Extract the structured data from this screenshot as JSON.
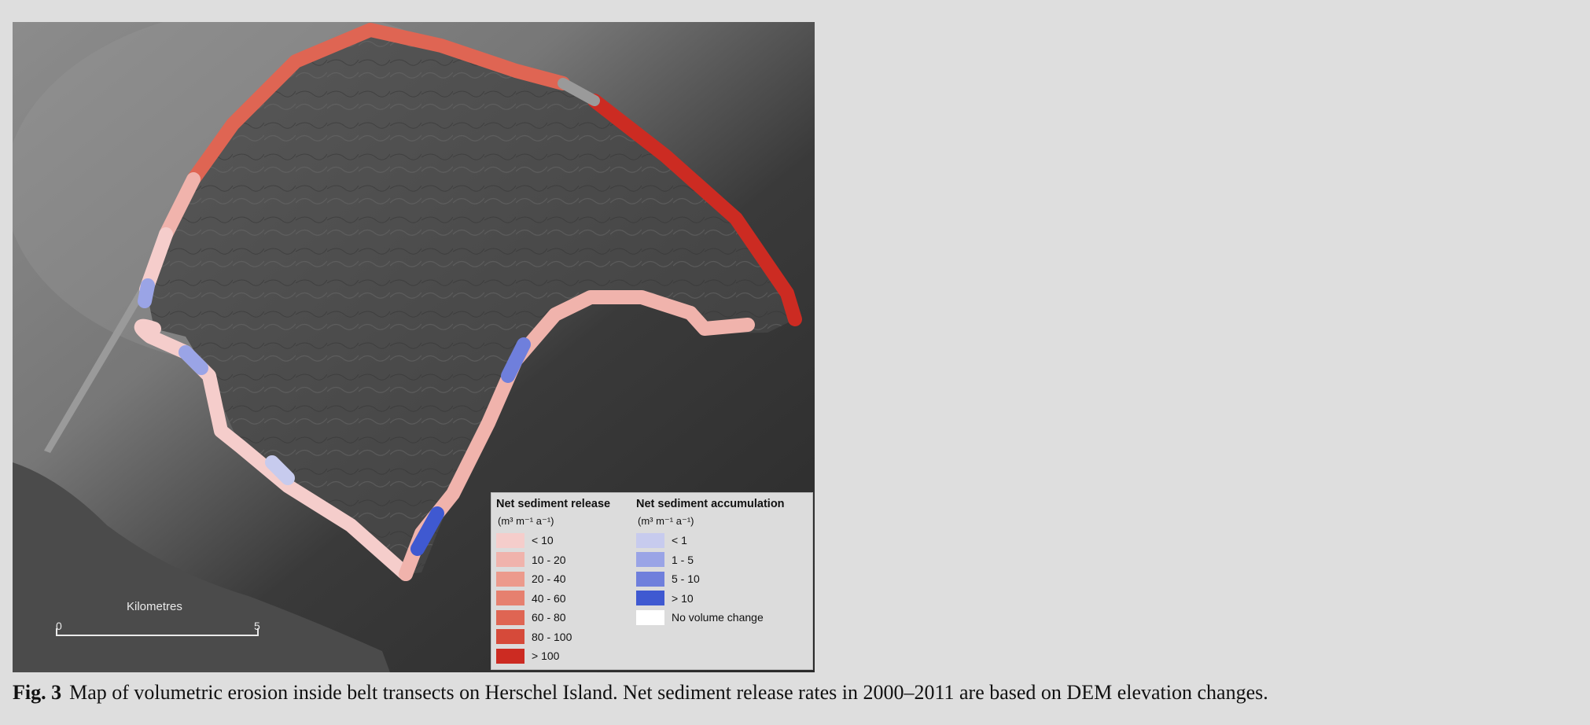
{
  "map": {
    "scale_bar": {
      "title": "Kilometres",
      "min": "0",
      "max": "5"
    },
    "legend": {
      "release": {
        "title": "Net sediment release",
        "unit": "(m³ m⁻¹ a⁻¹)",
        "classes": [
          {
            "label": "< 10",
            "color": "#f5cdcb"
          },
          {
            "label": "10 - 20",
            "color": "#f0b3ac"
          },
          {
            "label": "20 - 40",
            "color": "#ec9a8c"
          },
          {
            "label": "40 - 60",
            "color": "#e6806f"
          },
          {
            "label": "60 - 80",
            "color": "#df6553"
          },
          {
            "label": "80 - 100",
            "color": "#d64a3a"
          },
          {
            "label": "> 100",
            "color": "#cc2b22"
          }
        ]
      },
      "accumulation": {
        "title": "Net sediment accumulation",
        "unit": "(m³ m⁻¹ a⁻¹)",
        "classes": [
          {
            "label": "< 1",
            "color": "#c7cbee"
          },
          {
            "label": "1 - 5",
            "color": "#9aa4e6"
          },
          {
            "label": "5 - 10",
            "color": "#6f7fdc"
          },
          {
            "label": "> 10",
            "color": "#3f59d1"
          },
          {
            "label": "No volume change",
            "color": "#ffffff"
          }
        ]
      }
    }
  },
  "caption": {
    "label": "Fig. 3",
    "text": "Map of volumetric erosion inside belt transects on Herschel Island. Net sediment release rates in 2000–2011 are based on DEM elevation changes."
  }
}
